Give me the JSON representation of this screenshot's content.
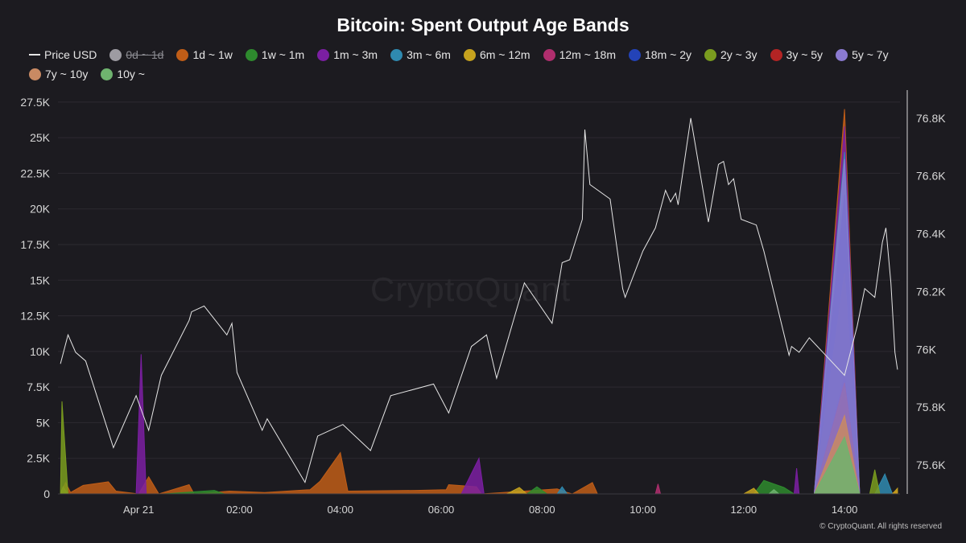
{
  "chart_data": {
    "type": "area",
    "title": "Bitcoin: Spent Output Age Bands",
    "x_ticks": [
      "Apr 21",
      "02:00",
      "04:00",
      "06:00",
      "08:00",
      "10:00",
      "12:00",
      "14:00"
    ],
    "x_tick_hours": [
      0,
      2,
      4,
      6,
      8,
      10,
      12,
      14
    ],
    "y_left": {
      "ticks": [
        "0",
        "2.5K",
        "5K",
        "7.5K",
        "10K",
        "12.5K",
        "15K",
        "17.5K",
        "20K",
        "22.5K",
        "25K",
        "27.5K"
      ],
      "range": [
        0,
        28000
      ]
    },
    "y_right": {
      "ticks": [
        "75.6K",
        "75.8K",
        "76K",
        "76.2K",
        "76.4K",
        "76.6K",
        "76.8K"
      ],
      "range": [
        75500,
        76880
      ]
    },
    "grid": true,
    "legend_position": "top-left",
    "series": [
      {
        "name": "Price USD",
        "type": "line",
        "color": "#e6e6e6",
        "axis": "right",
        "hidden": false,
        "points": [
          [
            -1.55,
            75950
          ],
          [
            -1.4,
            76050
          ],
          [
            -1.25,
            75990
          ],
          [
            -1.05,
            75960
          ],
          [
            -0.5,
            75660
          ],
          [
            -0.05,
            75840
          ],
          [
            0.2,
            75720
          ],
          [
            0.45,
            75910
          ],
          [
            1.0,
            76100
          ],
          [
            1.05,
            76130
          ],
          [
            1.3,
            76150
          ],
          [
            1.75,
            76050
          ],
          [
            1.85,
            76090
          ],
          [
            1.95,
            75920
          ],
          [
            2.45,
            75720
          ],
          [
            2.55,
            75760
          ],
          [
            3.3,
            75540
          ],
          [
            3.55,
            75700
          ],
          [
            4.05,
            75740
          ],
          [
            4.6,
            75650
          ],
          [
            5.0,
            75840
          ],
          [
            5.85,
            75880
          ],
          [
            6.15,
            75780
          ],
          [
            6.6,
            76010
          ],
          [
            6.9,
            76050
          ],
          [
            7.1,
            75900
          ],
          [
            7.65,
            76230
          ],
          [
            8.2,
            76090
          ],
          [
            8.4,
            76300
          ],
          [
            8.55,
            76310
          ],
          [
            8.8,
            76450
          ],
          [
            8.85,
            76760
          ],
          [
            8.95,
            76570
          ],
          [
            9.35,
            76520
          ],
          [
            9.6,
            76210
          ],
          [
            9.65,
            76180
          ],
          [
            10.0,
            76340
          ],
          [
            10.25,
            76420
          ],
          [
            10.45,
            76550
          ],
          [
            10.55,
            76510
          ],
          [
            10.65,
            76540
          ],
          [
            10.7,
            76500
          ],
          [
            10.85,
            76680
          ],
          [
            10.95,
            76800
          ],
          [
            11.3,
            76440
          ],
          [
            11.5,
            76640
          ],
          [
            11.6,
            76650
          ],
          [
            11.7,
            76570
          ],
          [
            11.8,
            76590
          ],
          [
            11.95,
            76450
          ],
          [
            12.25,
            76430
          ],
          [
            12.4,
            76340
          ],
          [
            12.9,
            75980
          ],
          [
            12.95,
            76010
          ],
          [
            13.1,
            75990
          ],
          [
            13.3,
            76040
          ],
          [
            14.0,
            75910
          ],
          [
            14.25,
            76080
          ],
          [
            14.4,
            76210
          ],
          [
            14.6,
            76180
          ],
          [
            14.75,
            76370
          ],
          [
            14.82,
            76420
          ],
          [
            14.92,
            76230
          ],
          [
            15.0,
            75990
          ],
          [
            15.05,
            75930
          ]
        ]
      },
      {
        "name": "0d ~ 1d",
        "color": "#9d9ba2",
        "axis": "left",
        "hidden": true,
        "points": []
      },
      {
        "name": "1d ~ 1w",
        "color": "#c05d17",
        "axis": "left",
        "hidden": false,
        "points": [
          [
            -1.55,
            0
          ],
          [
            -1.45,
            800
          ],
          [
            -1.35,
            100
          ],
          [
            -1.1,
            600
          ],
          [
            -0.6,
            850
          ],
          [
            -0.45,
            200
          ],
          [
            0,
            0
          ],
          [
            0.2,
            1200
          ],
          [
            0.4,
            0
          ],
          [
            1.0,
            650
          ],
          [
            1.1,
            0
          ],
          [
            1.8,
            200
          ],
          [
            2.5,
            100
          ],
          [
            3.4,
            300
          ],
          [
            3.6,
            900
          ],
          [
            4.0,
            2900
          ],
          [
            4.15,
            200
          ],
          [
            5.5,
            250
          ],
          [
            6.1,
            300
          ],
          [
            6.15,
            650
          ],
          [
            6.7,
            500
          ],
          [
            6.8,
            0
          ],
          [
            8.3,
            350
          ],
          [
            8.5,
            100
          ],
          [
            8.6,
            0
          ],
          [
            9.0,
            800
          ],
          [
            9.1,
            0
          ],
          [
            13.4,
            0
          ],
          [
            14.0,
            27000
          ],
          [
            14.3,
            0
          ],
          [
            14.9,
            0
          ],
          [
            15.05,
            200
          ]
        ]
      },
      {
        "name": "1w ~ 1m",
        "color": "#2e8a2e",
        "axis": "left",
        "hidden": false,
        "points": [
          [
            -1.55,
            0
          ],
          [
            -1.5,
            400
          ],
          [
            -1.4,
            0
          ],
          [
            0.5,
            0
          ],
          [
            1.5,
            250
          ],
          [
            1.7,
            0
          ],
          [
            7.7,
            0
          ],
          [
            7.9,
            500
          ],
          [
            8.1,
            0
          ],
          [
            12.2,
            0
          ],
          [
            12.4,
            950
          ],
          [
            12.8,
            450
          ],
          [
            13.0,
            0
          ],
          [
            13.4,
            0
          ],
          [
            14.0,
            8000
          ],
          [
            14.3,
            0
          ]
        ]
      },
      {
        "name": "1m ~ 3m",
        "color": "#7b1fa2",
        "axis": "left",
        "hidden": false,
        "points": [
          [
            -0.05,
            0
          ],
          [
            0.05,
            9800
          ],
          [
            0.15,
            0
          ],
          [
            6.4,
            0
          ],
          [
            6.75,
            2500
          ],
          [
            6.85,
            0
          ],
          [
            13.0,
            0
          ],
          [
            13.05,
            1800
          ],
          [
            13.1,
            0
          ],
          [
            13.4,
            0
          ],
          [
            14.0,
            25800
          ],
          [
            14.3,
            0
          ]
        ]
      },
      {
        "name": "3m ~ 6m",
        "color": "#2f8ab0",
        "axis": "left",
        "hidden": false,
        "points": [
          [
            8.3,
            0
          ],
          [
            8.4,
            500
          ],
          [
            8.5,
            0
          ],
          [
            13.4,
            0
          ],
          [
            14.0,
            24000
          ],
          [
            14.3,
            0
          ],
          [
            14.6,
            0
          ],
          [
            14.8,
            1400
          ],
          [
            14.95,
            0
          ]
        ]
      },
      {
        "name": "6m ~ 12m",
        "color": "#c6a21e",
        "axis": "left",
        "hidden": false,
        "points": [
          [
            -1.55,
            0
          ],
          [
            -1.5,
            500
          ],
          [
            -1.4,
            0
          ],
          [
            7.3,
            0
          ],
          [
            7.55,
            450
          ],
          [
            7.7,
            0
          ],
          [
            12.0,
            0
          ],
          [
            12.2,
            400
          ],
          [
            12.3,
            0
          ],
          [
            13.4,
            0
          ],
          [
            14.0,
            15500
          ],
          [
            14.3,
            0
          ],
          [
            14.95,
            0
          ],
          [
            15.05,
            400
          ]
        ]
      },
      {
        "name": "12m ~ 18m",
        "color": "#b02e6e",
        "axis": "left",
        "hidden": false,
        "points": [
          [
            13.4,
            0
          ],
          [
            14.0,
            8200
          ],
          [
            14.3,
            0
          ],
          [
            10.25,
            0
          ],
          [
            10.3,
            700
          ],
          [
            10.35,
            0
          ]
        ]
      },
      {
        "name": "18m ~ 2y",
        "color": "#2343b8",
        "axis": "left",
        "hidden": false,
        "points": [
          [
            13.4,
            0
          ],
          [
            14.0,
            21000
          ],
          [
            14.3,
            0
          ]
        ]
      },
      {
        "name": "2y ~ 3y",
        "color": "#7a9c1f",
        "axis": "left",
        "hidden": false,
        "points": [
          [
            -1.55,
            0
          ],
          [
            -1.52,
            6500
          ],
          [
            -1.4,
            0
          ],
          [
            13.4,
            0
          ],
          [
            14.0,
            7500
          ],
          [
            14.3,
            0
          ],
          [
            14.5,
            0
          ],
          [
            14.6,
            1700
          ],
          [
            14.7,
            0
          ]
        ]
      },
      {
        "name": "3y ~ 5y",
        "color": "#b32424",
        "axis": "left",
        "hidden": false,
        "points": [
          [
            13.4,
            0
          ],
          [
            14.0,
            7800
          ],
          [
            14.3,
            0
          ]
        ]
      },
      {
        "name": "5y ~ 7y",
        "color": "#8b7ad1",
        "axis": "left",
        "hidden": false,
        "points": [
          [
            13.4,
            0
          ],
          [
            14.0,
            23500
          ],
          [
            14.3,
            0
          ]
        ]
      },
      {
        "name": "7y ~ 10y",
        "color": "#c98a63",
        "axis": "left",
        "hidden": false,
        "points": [
          [
            13.4,
            0
          ],
          [
            14.0,
            5500
          ],
          [
            14.3,
            0
          ]
        ]
      },
      {
        "name": "10y ~",
        "color": "#6fb36f",
        "axis": "left",
        "hidden": false,
        "points": [
          [
            13.4,
            0
          ],
          [
            14.0,
            4000
          ],
          [
            14.3,
            0
          ],
          [
            12.5,
            0
          ],
          [
            12.6,
            300
          ],
          [
            12.7,
            0
          ]
        ]
      }
    ]
  },
  "watermark": "CryptoQuant",
  "credit": "© CryptoQuant. All rights reserved"
}
